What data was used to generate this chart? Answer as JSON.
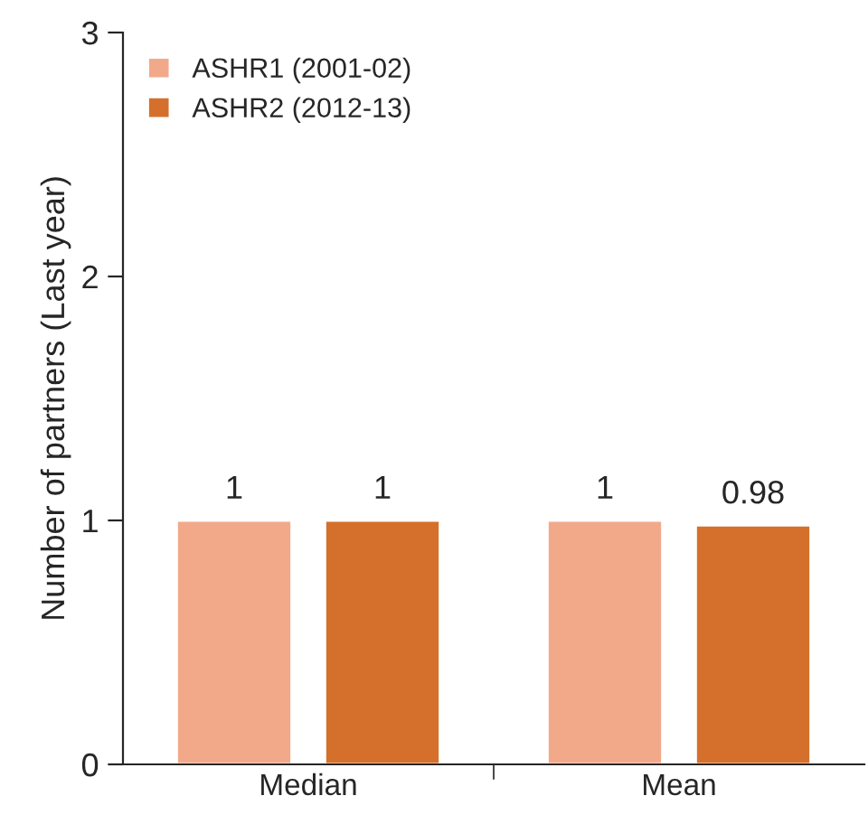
{
  "chart_data": {
    "type": "bar",
    "ylabel": "Number of partners (Last year)",
    "categories": [
      "Median",
      "Mean"
    ],
    "series": [
      {
        "name": "ASHR1 (2001-02)",
        "color": "#f2a98a",
        "values": [
          1,
          1
        ]
      },
      {
        "name": "ASHR2 (2012-13)",
        "color": "#d4702b",
        "values": [
          1,
          0.98
        ]
      }
    ],
    "ylim": [
      0,
      3
    ],
    "yticks": [
      0,
      1,
      2,
      3
    ],
    "data_labels": true,
    "grid": false,
    "legend": "top left"
  }
}
